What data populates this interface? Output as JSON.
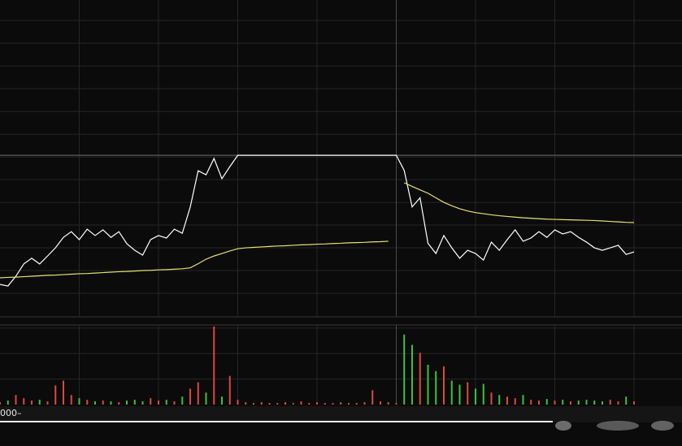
{
  "chart_data": [
    {
      "type": "line",
      "x": [
        0,
        3,
        6,
        9,
        12,
        15,
        18,
        21,
        24,
        27,
        30,
        33,
        36,
        39,
        42,
        45,
        48,
        51,
        54,
        57,
        60,
        63,
        66,
        69,
        72,
        75,
        78,
        81,
        84,
        87,
        90,
        93,
        96,
        99,
        102,
        105,
        108,
        111,
        114,
        117,
        120,
        123,
        126,
        129,
        132,
        135,
        138,
        141,
        144,
        147,
        150,
        153,
        156,
        159,
        162,
        165,
        168,
        171,
        174,
        177,
        180,
        183,
        186,
        189,
        192,
        195,
        198,
        201,
        204,
        207,
        210,
        213,
        216,
        219,
        222,
        225,
        228,
        231,
        234,
        237,
        240
      ],
      "xlim": [
        0,
        240
      ],
      "xticks": [
        30,
        60,
        90,
        120,
        150,
        180,
        210,
        240
      ],
      "ylim": [
        0,
        13.9
      ],
      "yticks": [
        1,
        2,
        3,
        4,
        5,
        6,
        7,
        8,
        9,
        10,
        11,
        12,
        13
      ],
      "ref_line": 7.07,
      "grid": true,
      "series": [
        {
          "color": "#ffffff",
          "values": [
            1.39,
            1.32,
            1.75,
            2.29,
            2.54,
            2.29,
            2.64,
            3.0,
            3.46,
            3.71,
            3.36,
            3.82,
            3.54,
            3.79,
            3.46,
            3.71,
            3.18,
            2.89,
            2.68,
            3.36,
            3.54,
            3.43,
            3.82,
            3.64,
            4.79,
            6.39,
            6.21,
            6.93,
            6.04,
            6.57,
            7.07,
            7.07,
            7.07,
            7.07,
            7.07,
            7.07,
            7.07,
            7.07,
            7.07,
            7.07,
            7.07,
            7.07,
            7.07,
            7.07,
            7.07,
            7.07,
            7.07,
            7.07,
            7.07,
            7.07,
            7.07,
            6.4,
            4.8,
            5.2,
            3.2,
            2.75,
            3.54,
            3.0,
            2.54,
            2.89,
            2.75,
            2.46,
            3.25,
            2.89,
            3.36,
            3.79,
            3.29,
            3.43,
            3.71,
            3.46,
            3.79,
            3.61,
            3.71,
            3.46,
            3.25,
            3.0,
            2.89,
            3.0,
            3.11,
            2.71,
            2.82
          ]
        },
        {
          "color": "#e4e46a",
          "values": [
            1.68,
            1.7,
            1.71,
            1.73,
            1.75,
            1.77,
            1.79,
            1.8,
            1.82,
            1.84,
            1.86,
            1.87,
            1.89,
            1.91,
            1.93,
            1.95,
            1.96,
            1.98,
            2.0,
            2.01,
            2.03,
            2.04,
            2.06,
            2.08,
            2.12,
            2.3,
            2.5,
            2.64,
            2.75,
            2.86,
            2.96,
            3.0,
            3.02,
            3.04,
            3.06,
            3.08,
            3.09,
            3.11,
            3.13,
            3.14,
            3.16,
            3.17,
            3.19,
            3.2,
            3.22,
            3.23,
            3.24,
            3.26,
            3.27,
            3.29,
            null,
            5.86,
            5.7,
            5.55,
            5.4,
            5.2,
            5.0,
            4.85,
            4.72,
            4.62,
            4.55,
            4.5,
            4.45,
            4.41,
            4.38,
            4.35,
            4.32,
            4.3,
            4.28,
            4.26,
            4.25,
            4.24,
            4.23,
            4.22,
            4.21,
            4.2,
            4.18,
            4.16,
            4.14,
            4.12,
            4.11
          ]
        }
      ]
    },
    {
      "type": "bar",
      "x": [
        0,
        3,
        6,
        9,
        12,
        15,
        18,
        21,
        24,
        27,
        30,
        33,
        36,
        39,
        42,
        45,
        48,
        51,
        54,
        57,
        60,
        63,
        66,
        69,
        72,
        75,
        78,
        81,
        84,
        87,
        90,
        93,
        96,
        99,
        102,
        105,
        108,
        111,
        114,
        117,
        120,
        123,
        126,
        129,
        132,
        135,
        138,
        141,
        144,
        147,
        150,
        153,
        156,
        159,
        162,
        165,
        168,
        171,
        174,
        177,
        180,
        183,
        186,
        189,
        192,
        195,
        198,
        201,
        204,
        207,
        210,
        213,
        216,
        219,
        222,
        225,
        228,
        231,
        234,
        237,
        240
      ],
      "xlim": [
        0,
        240
      ],
      "xticks": [
        30,
        60,
        90,
        120,
        150,
        180,
        210,
        240
      ],
      "ylim": [
        0,
        100
      ],
      "yticks": [
        32,
        64,
        96
      ],
      "grid": true,
      "up_color": "#e0463f",
      "down_color": "#3cc23c",
      "values": [
        3,
        5,
        12,
        8,
        5,
        6,
        4,
        24,
        30,
        12,
        8,
        6,
        4,
        5,
        4,
        3,
        5,
        6,
        4,
        8,
        5,
        6,
        4,
        10,
        20,
        28,
        15,
        98,
        10,
        36,
        6,
        3,
        2,
        3,
        2,
        2,
        3,
        2,
        4,
        2,
        3,
        2,
        2,
        3,
        2,
        2,
        3,
        18,
        4,
        3,
        2,
        88,
        75,
        65,
        50,
        42,
        48,
        30,
        25,
        28,
        20,
        26,
        15,
        12,
        10,
        8,
        12,
        6,
        5,
        7,
        5,
        6,
        4,
        5,
        6,
        5,
        4,
        6,
        4,
        10,
        4
      ]
    }
  ],
  "axis_label": "000–"
}
